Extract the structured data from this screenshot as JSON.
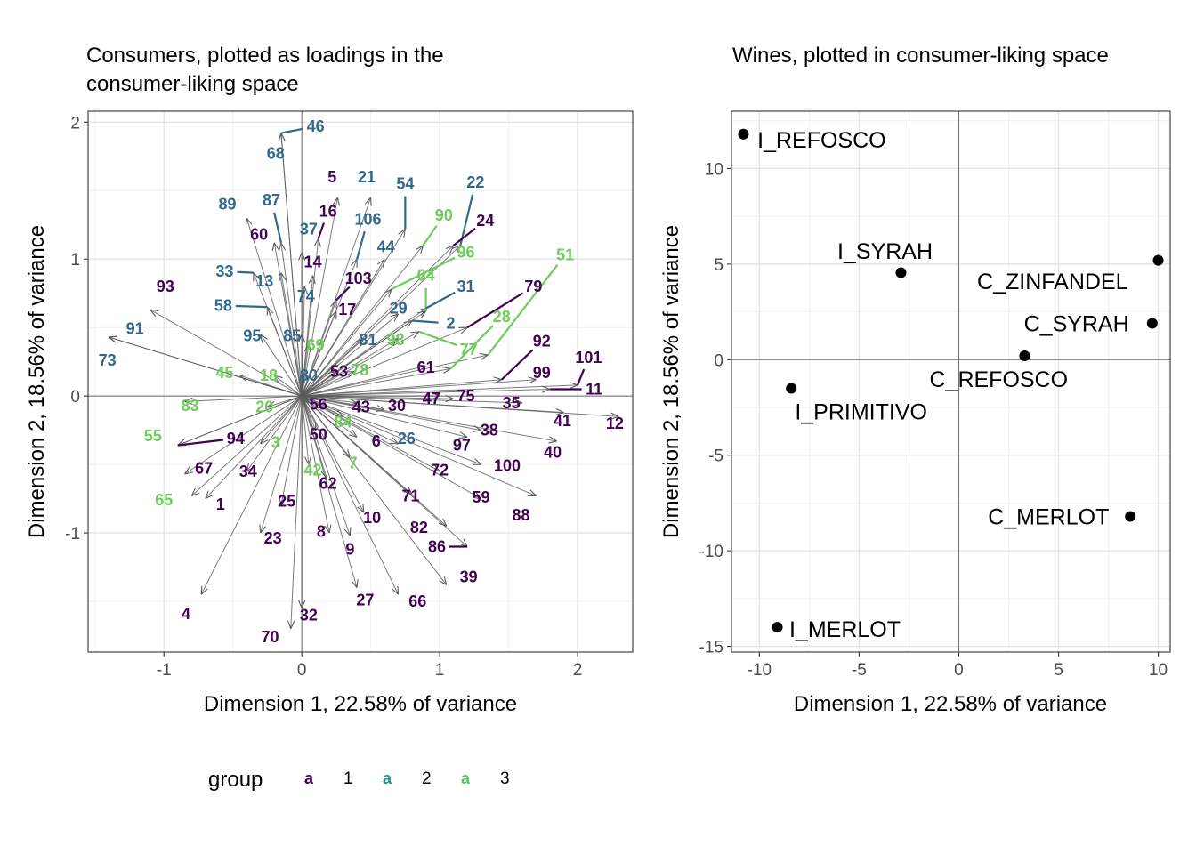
{
  "legend": {
    "title": "group",
    "key_glyph": "a",
    "items": [
      {
        "label": "1",
        "color": "#440154"
      },
      {
        "label": "2",
        "color": "#21908C"
      },
      {
        "label": "3",
        "color": "#5DC863"
      }
    ]
  },
  "chart_data": [
    {
      "type": "biplot-loadings",
      "title": "Consumers, plotted as loadings in the consumer-liking space",
      "xlabel": "Dimension 1, 22.58% of variance",
      "ylabel": "Dimension 2, 18.56% of variance",
      "xlim": [
        -1.55,
        2.4
      ],
      "ylim": [
        -1.87,
        2.08
      ],
      "xticks": [
        -1,
        0,
        1,
        2
      ],
      "yticks": [
        -1,
        0,
        1,
        2
      ],
      "grid": true,
      "arrow_color": "#4d4d4d",
      "group_colors": {
        "1": "#440154",
        "2": "#31688E",
        "3": "#6CCE59"
      },
      "consumers": [
        {
          "label": "46",
          "group": 2,
          "ax": -0.15,
          "ay": 1.92,
          "lx": 0.1,
          "ly": 1.97
        },
        {
          "label": "68",
          "group": 2,
          "ax": -0.15,
          "ay": 1.92,
          "lx": -0.19,
          "ly": 1.77
        },
        {
          "label": "5",
          "group": 1,
          "ax": 0.26,
          "ay": 1.45,
          "lx": 0.22,
          "ly": 1.6
        },
        {
          "label": "21",
          "group": 2,
          "ax": 0.5,
          "ay": 1.45,
          "lx": 0.47,
          "ly": 1.6
        },
        {
          "label": "54",
          "group": 2,
          "ax": 0.75,
          "ay": 1.22,
          "lx": 0.75,
          "ly": 1.55
        },
        {
          "label": "22",
          "group": 2,
          "ax": 1.15,
          "ay": 1.1,
          "lx": 1.26,
          "ly": 1.56
        },
        {
          "label": "89",
          "group": 2,
          "ax": -0.4,
          "ay": 1.3,
          "lx": -0.54,
          "ly": 1.4
        },
        {
          "label": "87",
          "group": 2,
          "ax": -0.15,
          "ay": 1.12,
          "lx": -0.22,
          "ly": 1.43
        },
        {
          "label": "16",
          "group": 1,
          "ax": 0.12,
          "ay": 1.15,
          "lx": 0.19,
          "ly": 1.35
        },
        {
          "label": "106",
          "group": 2,
          "ax": 0.4,
          "ay": 1.0,
          "lx": 0.48,
          "ly": 1.29
        },
        {
          "label": "90",
          "group": 3,
          "ax": 0.88,
          "ay": 1.1,
          "lx": 1.03,
          "ly": 1.32
        },
        {
          "label": "24",
          "group": 1,
          "ax": 1.1,
          "ay": 1.1,
          "lx": 1.33,
          "ly": 1.28
        },
        {
          "label": "60",
          "group": 1,
          "ax": -0.2,
          "ay": 1.12,
          "lx": -0.31,
          "ly": 1.18
        },
        {
          "label": "37",
          "group": 2,
          "ax": 0.0,
          "ay": 1.05,
          "lx": 0.05,
          "ly": 1.22
        },
        {
          "label": "44",
          "group": 2,
          "ax": 0.6,
          "ay": 1.0,
          "lx": 0.61,
          "ly": 1.09
        },
        {
          "label": "96",
          "group": 3,
          "ax": 0.65,
          "ay": 0.78,
          "lx": 1.19,
          "ly": 1.05
        },
        {
          "label": "51",
          "group": 3,
          "ax": 1.35,
          "ay": 0.3,
          "lx": 1.91,
          "ly": 1.03
        },
        {
          "label": "14",
          "group": 1,
          "ax": 0.08,
          "ay": 0.88,
          "lx": 0.08,
          "ly": 0.98
        },
        {
          "label": "33",
          "group": 2,
          "ax": -0.35,
          "ay": 0.9,
          "lx": -0.56,
          "ly": 0.91
        },
        {
          "label": "13",
          "group": 2,
          "ax": -0.15,
          "ay": 0.9,
          "lx": -0.27,
          "ly": 0.84
        },
        {
          "label": "103",
          "group": 1,
          "ax": 0.25,
          "ay": 0.7,
          "lx": 0.41,
          "ly": 0.86
        },
        {
          "label": "64",
          "group": 3,
          "ax": 0.9,
          "ay": 0.62,
          "lx": 0.9,
          "ly": 0.88
        },
        {
          "label": "31",
          "group": 2,
          "ax": 0.9,
          "ay": 0.64,
          "lx": 1.19,
          "ly": 0.8
        },
        {
          "label": "79",
          "group": 1,
          "ax": 1.2,
          "ay": 0.5,
          "lx": 1.68,
          "ly": 0.8
        },
        {
          "label": "93",
          "group": 1,
          "ax": -1.1,
          "ay": 0.63,
          "lx": -0.99,
          "ly": 0.8
        },
        {
          "label": "74",
          "group": 2,
          "ax": 0.02,
          "ay": 0.8,
          "lx": 0.03,
          "ly": 0.73
        },
        {
          "label": "58",
          "group": 2,
          "ax": -0.25,
          "ay": 0.65,
          "lx": -0.57,
          "ly": 0.66
        },
        {
          "label": "17",
          "group": 1,
          "ax": 0.25,
          "ay": 0.62,
          "lx": 0.33,
          "ly": 0.63
        },
        {
          "label": "29",
          "group": 2,
          "ax": 0.7,
          "ay": 0.6,
          "lx": 0.7,
          "ly": 0.64
        },
        {
          "label": "2",
          "group": 2,
          "ax": 0.8,
          "ay": 0.55,
          "lx": 1.08,
          "ly": 0.53
        },
        {
          "label": "28",
          "group": 3,
          "ax": 1.08,
          "ay": 0.2,
          "lx": 1.45,
          "ly": 0.58
        },
        {
          "label": "91",
          "group": 2,
          "ax": -1.4,
          "ay": 0.43,
          "lx": -1.21,
          "ly": 0.49
        },
        {
          "label": "95",
          "group": 2,
          "ax": -0.3,
          "ay": 0.45,
          "lx": -0.36,
          "ly": 0.44
        },
        {
          "label": "85",
          "group": 2,
          "ax": 0.0,
          "ay": 0.45,
          "lx": -0.07,
          "ly": 0.44
        },
        {
          "label": "81",
          "group": 2,
          "ax": 0.45,
          "ay": 0.42,
          "lx": 0.48,
          "ly": 0.41
        },
        {
          "label": "98",
          "group": 3,
          "ax": 0.7,
          "ay": 0.42,
          "lx": 0.68,
          "ly": 0.41
        },
        {
          "label": "77",
          "group": 3,
          "ax": 0.85,
          "ay": 0.47,
          "lx": 1.21,
          "ly": 0.34
        },
        {
          "label": "92",
          "group": 1,
          "ax": 1.45,
          "ay": 0.12,
          "lx": 1.74,
          "ly": 0.4
        },
        {
          "label": "69",
          "group": 3,
          "ax": 0.05,
          "ay": 0.38,
          "lx": 0.1,
          "ly": 0.37
        },
        {
          "label": "73",
          "group": 2,
          "ax": -1.4,
          "ay": 0.43,
          "lx": -1.41,
          "ly": 0.26
        },
        {
          "label": "101",
          "group": 1,
          "ax": 2.0,
          "ay": 0.08,
          "lx": 2.08,
          "ly": 0.28
        },
        {
          "label": "61",
          "group": 1,
          "ax": 0.9,
          "ay": 0.22,
          "lx": 0.9,
          "ly": 0.21
        },
        {
          "label": "99",
          "group": 1,
          "ax": 1.7,
          "ay": 0.12,
          "lx": 1.74,
          "ly": 0.17
        },
        {
          "label": "45",
          "group": 3,
          "ax": -0.45,
          "ay": 0.15,
          "lx": -0.56,
          "ly": 0.17
        },
        {
          "label": "18",
          "group": 3,
          "ax": -0.2,
          "ay": 0.15,
          "lx": -0.24,
          "ly": 0.15
        },
        {
          "label": "53",
          "group": 1,
          "ax": 0.25,
          "ay": 0.18,
          "lx": 0.27,
          "ly": 0.18
        },
        {
          "label": "78",
          "group": 3,
          "ax": 0.38,
          "ay": 0.18,
          "lx": 0.42,
          "ly": 0.19
        },
        {
          "label": "80",
          "group": 2,
          "ax": 0.0,
          "ay": 0.15,
          "lx": 0.05,
          "ly": 0.15
        },
        {
          "label": "11",
          "group": 1,
          "ax": 1.8,
          "ay": 0.05,
          "lx": 2.12,
          "ly": 0.05
        },
        {
          "label": "47",
          "group": 1,
          "ax": 1.0,
          "ay": 0.0,
          "lx": 0.94,
          "ly": -0.02
        },
        {
          "label": "75",
          "group": 1,
          "ax": 1.1,
          "ay": -0.02,
          "lx": 1.19,
          "ly": -0.0
        },
        {
          "label": "35",
          "group": 1,
          "ax": 1.6,
          "ay": -0.05,
          "lx": 1.52,
          "ly": -0.05
        },
        {
          "label": "83",
          "group": 3,
          "ax": -0.85,
          "ay": -0.04,
          "lx": -0.81,
          "ly": -0.07
        },
        {
          "label": "20",
          "group": 3,
          "ax": -0.25,
          "ay": -0.08,
          "lx": -0.27,
          "ly": -0.08
        },
        {
          "label": "56",
          "group": 1,
          "ax": 0.05,
          "ay": -0.05,
          "lx": 0.12,
          "ly": -0.06
        },
        {
          "label": "43",
          "group": 1,
          "ax": 0.4,
          "ay": -0.05,
          "lx": 0.43,
          "ly": -0.08
        },
        {
          "label": "30",
          "group": 1,
          "ax": 0.6,
          "ay": -0.1,
          "lx": 0.69,
          "ly": -0.07
        },
        {
          "label": "12",
          "group": 1,
          "ax": 2.3,
          "ay": -0.15,
          "lx": 2.27,
          "ly": -0.2
        },
        {
          "label": "41",
          "group": 1,
          "ax": 1.9,
          "ay": -0.12,
          "lx": 1.89,
          "ly": -0.18
        },
        {
          "label": "84",
          "group": 3,
          "ax": 0.3,
          "ay": -0.15,
          "lx": 0.3,
          "ly": -0.19
        },
        {
          "label": "38",
          "group": 1,
          "ax": 1.3,
          "ay": -0.25,
          "lx": 1.36,
          "ly": -0.25
        },
        {
          "label": "55",
          "group": 3,
          "ax": -0.9,
          "ay": -0.36,
          "lx": -1.08,
          "ly": -0.29
        },
        {
          "label": "94",
          "group": 1,
          "ax": -0.9,
          "ay": -0.36,
          "lx": -0.48,
          "ly": -0.31
        },
        {
          "label": "50",
          "group": 1,
          "ax": 0.1,
          "ay": -0.25,
          "lx": 0.12,
          "ly": -0.28
        },
        {
          "label": "6",
          "group": 1,
          "ax": 0.4,
          "ay": -0.3,
          "lx": 0.54,
          "ly": -0.33
        },
        {
          "label": "26",
          "group": 2,
          "ax": 0.7,
          "ay": -0.35,
          "lx": 0.76,
          "ly": -0.31
        },
        {
          "label": "97",
          "group": 1,
          "ax": 1.2,
          "ay": -0.3,
          "lx": 1.16,
          "ly": -0.36
        },
        {
          "label": "40",
          "group": 1,
          "ax": 1.85,
          "ay": -0.33,
          "lx": 1.82,
          "ly": -0.41
        },
        {
          "label": "3",
          "group": 3,
          "ax": -0.3,
          "ay": -0.35,
          "lx": -0.19,
          "ly": -0.34
        },
        {
          "label": "100",
          "group": 1,
          "ax": 1.3,
          "ay": -0.5,
          "lx": 1.49,
          "ly": -0.51
        },
        {
          "label": "7",
          "group": 3,
          "ax": 0.35,
          "ay": -0.45,
          "lx": 0.37,
          "ly": -0.49
        },
        {
          "label": "67",
          "group": 1,
          "ax": -0.85,
          "ay": -0.57,
          "lx": -0.71,
          "ly": -0.53
        },
        {
          "label": "34",
          "group": 1,
          "ax": -0.4,
          "ay": -0.55,
          "lx": -0.39,
          "ly": -0.55
        },
        {
          "label": "42",
          "group": 3,
          "ax": 0.05,
          "ay": -0.5,
          "lx": 0.08,
          "ly": -0.54
        },
        {
          "label": "72",
          "group": 1,
          "ax": 1.0,
          "ay": -0.55,
          "lx": 1.0,
          "ly": -0.54
        },
        {
          "label": "62",
          "group": 1,
          "ax": 0.18,
          "ay": -0.6,
          "lx": 0.19,
          "ly": -0.64
        },
        {
          "label": "71",
          "group": 1,
          "ax": 0.8,
          "ay": -0.72,
          "lx": 0.79,
          "ly": -0.73
        },
        {
          "label": "59",
          "group": 1,
          "ax": 1.3,
          "ay": -0.75,
          "lx": 1.3,
          "ly": -0.74
        },
        {
          "label": "65",
          "group": 3,
          "ax": -0.8,
          "ay": -0.73,
          "lx": -1.0,
          "ly": -0.76
        },
        {
          "label": "1",
          "group": 1,
          "ax": -0.7,
          "ay": -0.75,
          "lx": -0.59,
          "ly": -0.79
        },
        {
          "label": "25",
          "group": 1,
          "ax": -0.15,
          "ay": -0.8,
          "lx": -0.11,
          "ly": -0.77
        },
        {
          "label": "88",
          "group": 1,
          "ax": 1.7,
          "ay": -0.73,
          "lx": 1.59,
          "ly": -0.87
        },
        {
          "label": "10",
          "group": 1,
          "ax": 0.45,
          "ay": -0.85,
          "lx": 0.51,
          "ly": -0.89
        },
        {
          "label": "82",
          "group": 1,
          "ax": 1.05,
          "ay": -0.95,
          "lx": 0.85,
          "ly": -0.96
        },
        {
          "label": "8",
          "group": 1,
          "ax": 0.2,
          "ay": -1.0,
          "lx": 0.14,
          "ly": -0.99
        },
        {
          "label": "23",
          "group": 1,
          "ax": -0.3,
          "ay": -1.0,
          "lx": -0.21,
          "ly": -1.04
        },
        {
          "label": "86",
          "group": 1,
          "ax": 1.2,
          "ay": -1.1,
          "lx": 0.98,
          "ly": -1.1
        },
        {
          "label": "9",
          "group": 1,
          "ax": 0.35,
          "ay": -1.02,
          "lx": 0.35,
          "ly": -1.12
        },
        {
          "label": "39",
          "group": 1,
          "ax": 1.05,
          "ay": -1.38,
          "lx": 1.21,
          "ly": -1.32
        },
        {
          "label": "4",
          "group": 1,
          "ax": -0.73,
          "ay": -1.45,
          "lx": -0.84,
          "ly": -1.59
        },
        {
          "label": "27",
          "group": 1,
          "ax": 0.4,
          "ay": -1.4,
          "lx": 0.46,
          "ly": -1.49
        },
        {
          "label": "66",
          "group": 1,
          "ax": 0.7,
          "ay": -1.45,
          "lx": 0.84,
          "ly": -1.5
        },
        {
          "label": "32",
          "group": 1,
          "ax": 0.0,
          "ay": -1.55,
          "lx": 0.05,
          "ly": -1.6
        },
        {
          "label": "70",
          "group": 1,
          "ax": -0.08,
          "ay": -1.7,
          "lx": -0.23,
          "ly": -1.76
        }
      ]
    },
    {
      "type": "scatter",
      "title": "Wines, plotted in consumer-liking space",
      "xlabel": "Dimension 1, 22.58% of variance",
      "ylabel": "Dimension 2, 18.56% of variance",
      "xlim": [
        -11.4,
        10.6
      ],
      "ylim": [
        -15.3,
        13.0
      ],
      "xticks": [
        -10,
        -5,
        0,
        5,
        10
      ],
      "yticks": [
        -15,
        -10,
        -5,
        0,
        5,
        10
      ],
      "grid": true,
      "points": [
        {
          "label": "I_REFOSCO",
          "x": -10.8,
          "y": 11.8,
          "anchor": "start",
          "lx": -10.1,
          "ly": 11.5
        },
        {
          "label": "I_SYRAH",
          "x": -2.9,
          "y": 4.55,
          "anchor": "middle",
          "lx": -3.7,
          "ly": 5.7
        },
        {
          "label": "C_ZINFANDEL",
          "x": 10.0,
          "y": 5.2,
          "anchor": "middle",
          "lx": 4.7,
          "ly": 4.1
        },
        {
          "label": "C_SYRAH",
          "x": 9.7,
          "y": 1.9,
          "anchor": "middle",
          "lx": 5.9,
          "ly": 1.9
        },
        {
          "label": "C_REFOSCO",
          "x": 3.3,
          "y": 0.2,
          "anchor": "middle",
          "lx": 2.0,
          "ly": -1.0
        },
        {
          "label": "I_PRIMITIVO",
          "x": -8.4,
          "y": -1.5,
          "anchor": "middle",
          "lx": -4.9,
          "ly": -2.7
        },
        {
          "label": "C_MERLOT",
          "x": 8.6,
          "y": -8.2,
          "anchor": "middle",
          "lx": 4.5,
          "ly": -8.2
        },
        {
          "label": "I_MERLOT",
          "x": -9.1,
          "y": -14.0,
          "anchor": "start",
          "lx": -8.5,
          "ly": -14.1
        }
      ]
    }
  ]
}
